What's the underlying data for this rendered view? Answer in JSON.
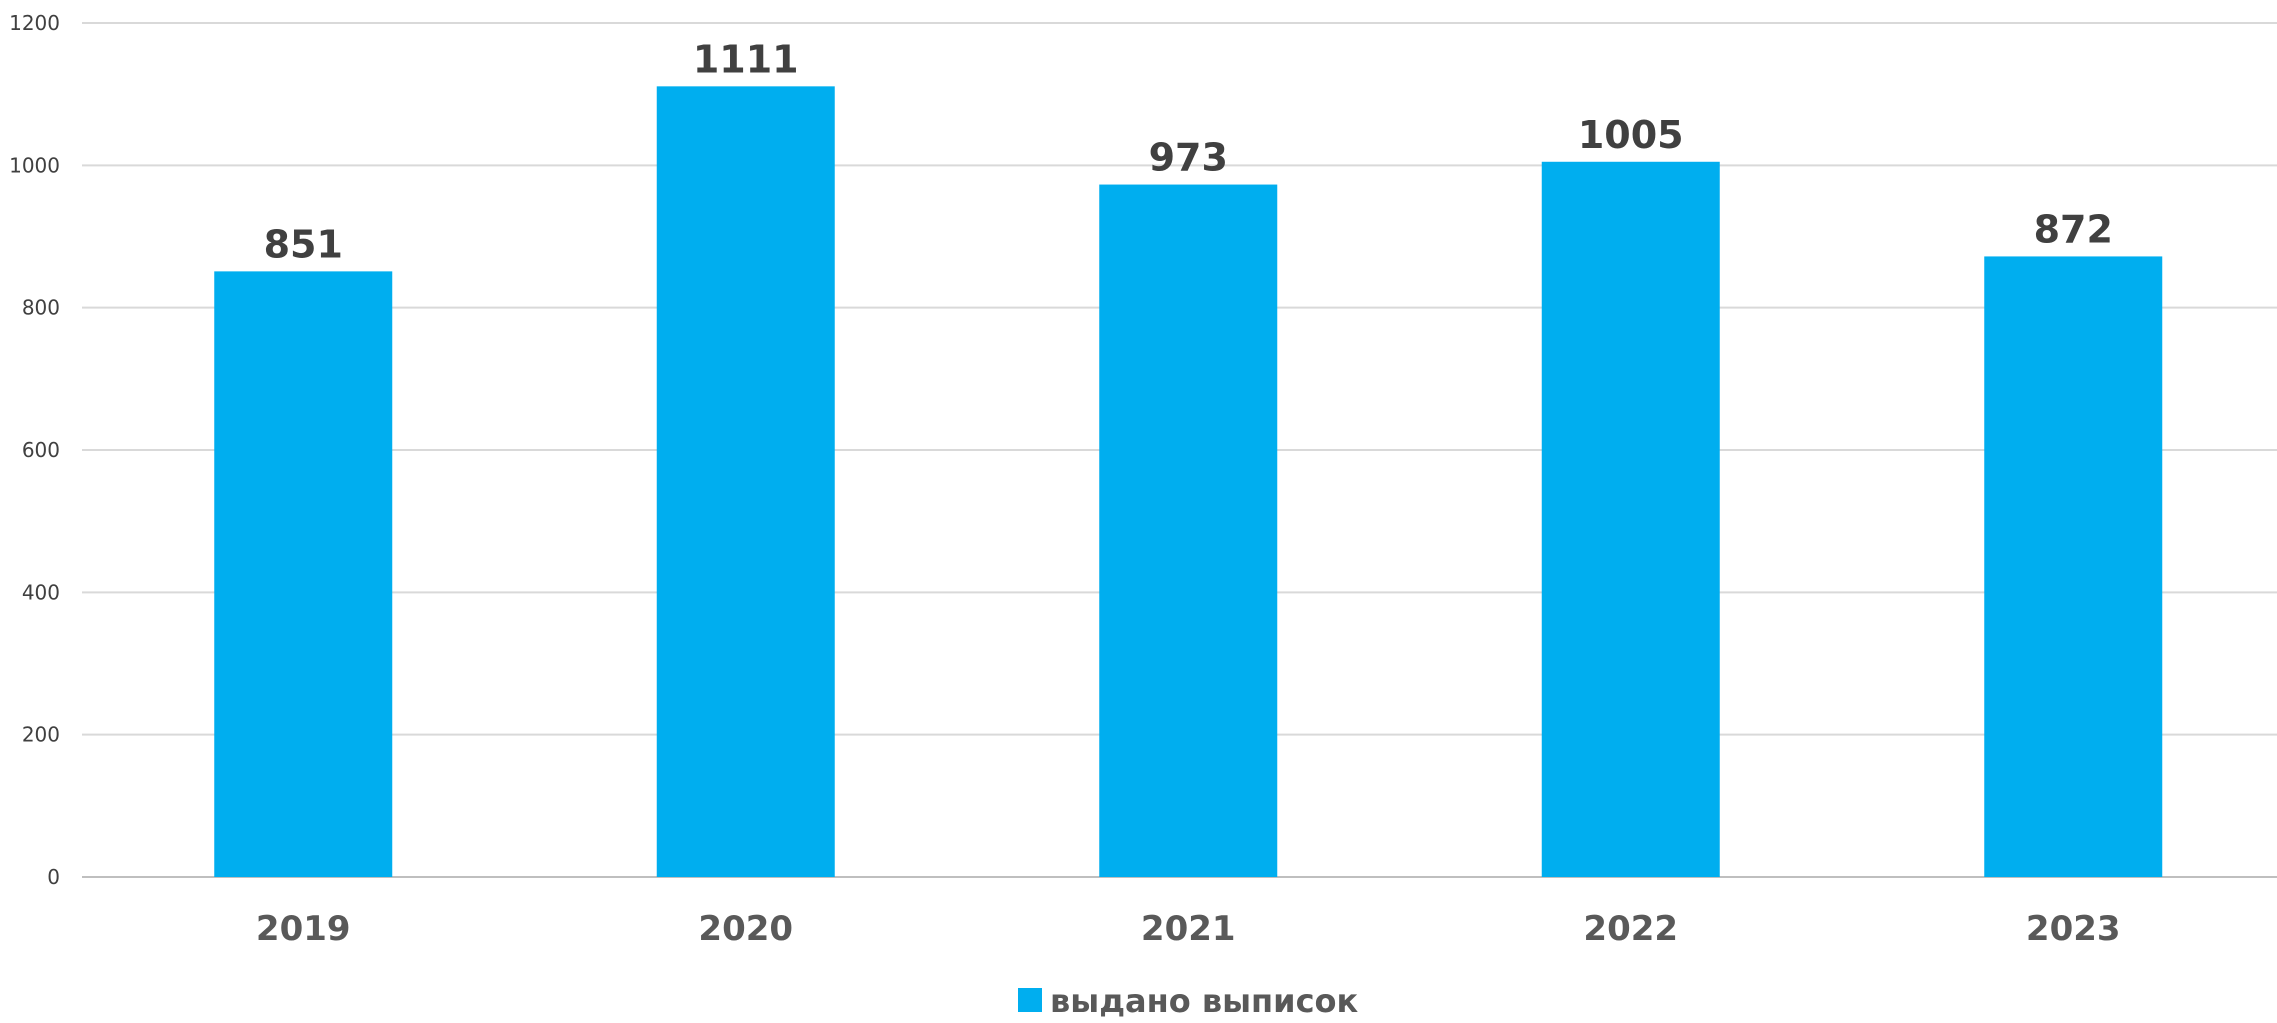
{
  "chart_data": {
    "type": "bar",
    "categories": [
      "2019",
      "2020",
      "2021",
      "2022",
      "2023"
    ],
    "series": [
      {
        "name": "выдано выписок",
        "values": [
          851,
          1111,
          973,
          1005,
          872
        ]
      }
    ],
    "data_labels": [
      "851",
      "1111",
      "973",
      "1005",
      "872"
    ],
    "y_ticks": [
      "0",
      "200",
      "400",
      "600",
      "800",
      "1000",
      "1200"
    ],
    "ylim": [
      0,
      1200
    ],
    "title": "",
    "xlabel": "",
    "ylabel": "",
    "grid": true,
    "legend_position": "bottom",
    "colors": {
      "bar": "#00AEEF",
      "grid": "#D9D9D9",
      "axis": "#BFBFBF"
    }
  }
}
